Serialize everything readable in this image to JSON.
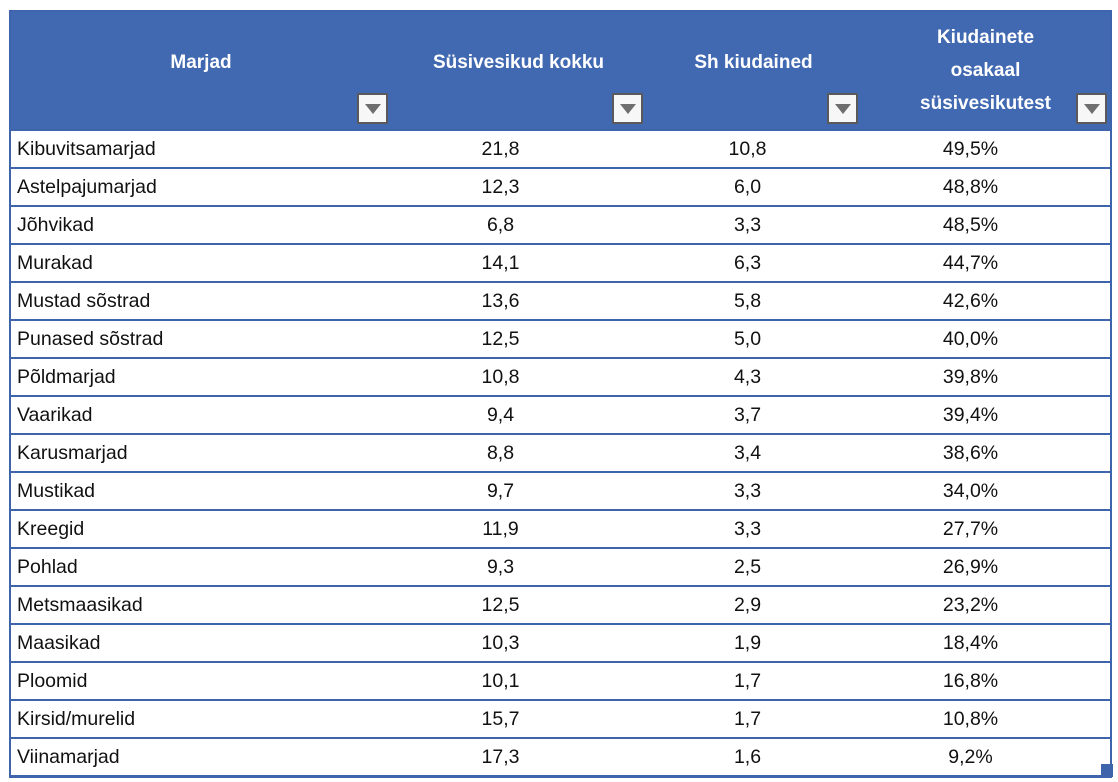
{
  "table": {
    "columns": [
      {
        "label": "Marjad"
      },
      {
        "label": "Süsivesikud kokku"
      },
      {
        "label": "Sh kiudained"
      },
      {
        "label": "Kiudainete osakaal süsivesikutest",
        "lines": [
          "Kiudainete",
          "osakaal",
          "süsivesikutest"
        ]
      }
    ],
    "rows": [
      {
        "name": "Kibuvitsamarjad",
        "carbs": "21,8",
        "fiber": "10,8",
        "share": "49,5%"
      },
      {
        "name": "Astelpajumarjad",
        "carbs": "12,3",
        "fiber": "6,0",
        "share": "48,8%"
      },
      {
        "name": "Jõhvikad",
        "carbs": "6,8",
        "fiber": "3,3",
        "share": "48,5%"
      },
      {
        "name": "Murakad",
        "carbs": "14,1",
        "fiber": "6,3",
        "share": "44,7%"
      },
      {
        "name": "Mustad sõstrad",
        "carbs": "13,6",
        "fiber": "5,8",
        "share": "42,6%"
      },
      {
        "name": "Punased sõstrad",
        "carbs": "12,5",
        "fiber": "5,0",
        "share": "40,0%"
      },
      {
        "name": "Põldmarjad",
        "carbs": "10,8",
        "fiber": "4,3",
        "share": "39,8%"
      },
      {
        "name": "Vaarikad",
        "carbs": "9,4",
        "fiber": "3,7",
        "share": "39,4%"
      },
      {
        "name": "Karusmarjad",
        "carbs": "8,8",
        "fiber": "3,4",
        "share": "38,6%"
      },
      {
        "name": "Mustikad",
        "carbs": "9,7",
        "fiber": "3,3",
        "share": "34,0%"
      },
      {
        "name": "Kreegid",
        "carbs": "11,9",
        "fiber": "3,3",
        "share": "27,7%"
      },
      {
        "name": "Pohlad",
        "carbs": "9,3",
        "fiber": "2,5",
        "share": "26,9%"
      },
      {
        "name": "Metsmaasikad",
        "carbs": "12,5",
        "fiber": "2,9",
        "share": "23,2%"
      },
      {
        "name": "Maasikad",
        "carbs": "10,3",
        "fiber": "1,9",
        "share": "18,4%"
      },
      {
        "name": "Ploomid",
        "carbs": "10,1",
        "fiber": "1,7",
        "share": "16,8%"
      },
      {
        "name": "Kirsid/murelid",
        "carbs": "15,7",
        "fiber": "1,7",
        "share": "10,8%"
      },
      {
        "name": "Viinamarjad",
        "carbs": "17,3",
        "fiber": "1,6",
        "share": "9,2%"
      }
    ]
  },
  "icons": {
    "filter_dropdown": "chevron-down-icon"
  },
  "colors": {
    "header_bg": "#4169B1",
    "border_blue": "#3E64AC",
    "row_bg": "#FFFFFF",
    "header_text": "#FFFFFF",
    "body_text": "#111111",
    "dropdown_bg": "#F7F7F7",
    "dropdown_border": "#5A5A5A",
    "dropdown_arrow": "#6E6E6E"
  }
}
